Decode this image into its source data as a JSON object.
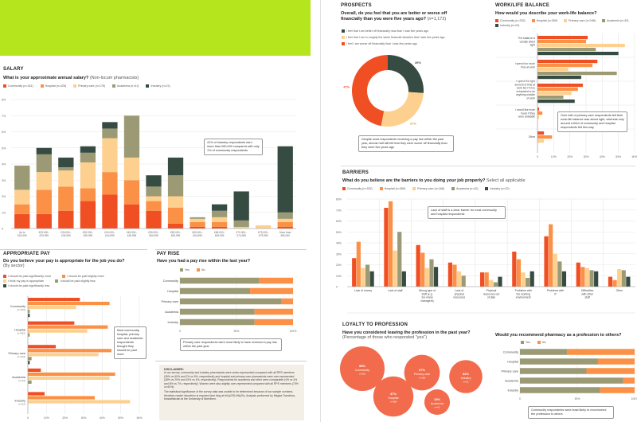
{
  "colors": {
    "banner": "#b5e61d",
    "community": "#f04e23",
    "hospital": "#fb9147",
    "primary_care": "#fdd08f",
    "academia": "#9b9a75",
    "industry": "#364c42",
    "bubble": "#f26b4c",
    "yes": "#9b9a75",
    "no": "#fb9147"
  },
  "salary": {
    "section": "SALARY",
    "question": "What is your approximate annual salary?",
    "question_sub": "(Non-locum pharmacists)",
    "legend": [
      "Community (n=341)",
      "Hospital (n=426)",
      "Primary care (n=176)",
      "Academia (n=41)",
      "Industry (n=21)"
    ],
    "note": "41% of industry respondents earn more than £80,000 compared with only 1% of community respondents"
  },
  "appropriate_pay": {
    "section": "APPROPRIATE PAY",
    "question": "Do you believe your pay is appropriate for the job you do?",
    "question_sub": "(By sector)",
    "legend": [
      "I should be paid significantly more",
      "I should be paid slightly more",
      "I think my pay is appropriate",
      "I should be paid slightly less",
      "I should be paid significantly less"
    ],
    "note": "Most community, hospital, primary care and academia respondents thought they should be paid more"
  },
  "pay_rise": {
    "section": "PAY RISE",
    "question": "Have you had a pay rise within the last year?",
    "legend": [
      "Yes",
      "No"
    ],
    "note": "Primary care respondents were most likely to have received a pay rise within the past year"
  },
  "disclaimer": {
    "title": "DISCLAIMER:",
    "p1": "In our survey, community and industry pharmacists were under-represented compared with all RPS members (39% vs 60% and 2% vs 5%, respectively) and hospital and primary care pharmacists were over-represented (38% vs 20% and 15% vs 4%, respectively). Respondents for academia and other were comparable (4% vs 4% and 8% vs 7%, respectively). Women were also slightly over-represented compared with all RPS members (70% vs 60%).",
    "p2": "The statistical significance of the survey data was unable to be determined because of low sample numbers, therefore reader discretion is required (see blog at bit.ly/2SLhWyTo). Analysis performed by Magda Tranchina, biostatistician at the University of Aberdeen."
  },
  "prospects": {
    "section": "PROSPECTS",
    "question": "Overall, do you feel that you are better or worse off financially than you were five years ago?",
    "question_sub": "(n=1,172)",
    "legend": [
      "I feel that I am better off financially now than I was five years ago",
      "I feel that I am in roughly the same financial situation that I was five years ago",
      "I feel I am worse off financially than I was five years ago"
    ],
    "note": "Despite most respondents receiving a pay rise within the past year, almost half still felt that they were worse off financially than they were five years ago"
  },
  "work_life": {
    "section": "WORK/LIFE BALANCE",
    "question": "How would you describe your work-life balance?",
    "legend": [
      "Community (n=332)",
      "Hospital (n=369)",
      "Primary care (n=166)",
      "Academia (n=42)",
      "Industry (n=22)"
    ],
    "note": "Over half of primary care respondents felt their work-life balance was about right, whereas only around a third of community and hospital respondents felt this way"
  },
  "barriers": {
    "section": "BARRIERS",
    "question": "What do you believe are the barriers to you doing your job properly?",
    "question_sub": "Select all applicable",
    "legend": [
      "Community (n=332)",
      "Hospital (n=369)",
      "Primary care (n=166)",
      "Academia (n=42)",
      "Industry (n=22)"
    ],
    "note": "Lack of staff is a clear barrier for most community and hospital respondents"
  },
  "loyalty": {
    "section": "LOYALTY TO PROFESSION",
    "question": "Have you considered leaving the profession in the past year?",
    "question_sub": "(Percentage of those who responded \"yes\")"
  },
  "recommend": {
    "question": "Would you recommend pharmacy as a profession to others?",
    "legend": [
      "Yes",
      "No"
    ],
    "note": "Community respondents were least likely to recommend the profession to others"
  },
  "chart_data": [
    {
      "id": "salary",
      "type": "bar",
      "stacked": true,
      "title": "What is your approximate annual salary?",
      "categories": [
        "Up to £24,999",
        "£25,000–£29,999",
        "£30,000–£34,999",
        "£35,000–£39,999",
        "£40,000–£44,999",
        "£45,000–£49,999",
        "£50,000–£54,999",
        "£55,000–£59,999",
        "£60,000–£64,999",
        "£65,000–£69,999",
        "£70,000–£74,999",
        "£75,000–£79,999",
        "More than £80,000"
      ],
      "yticks": [
        "0",
        "1%",
        "2%",
        "3%",
        "4%",
        "5%",
        "6%",
        "7%",
        "8%"
      ],
      "ylim": [
        0,
        8
      ],
      "series": [
        {
          "name": "Community",
          "values": [
            0.9,
            0.9,
            1.1,
            1.7,
            2.1,
            1.5,
            1.1,
            0.3,
            0.1,
            0.1,
            0.0,
            0.0,
            0.1
          ]
        },
        {
          "name": "Hospital",
          "values": [
            0.6,
            1.5,
            1.5,
            0.8,
            1.4,
            1.5,
            0.6,
            1.0,
            0.3,
            0.3,
            0.0,
            0.0,
            0.3
          ]
        },
        {
          "name": "Primary care",
          "values": [
            0.9,
            1.1,
            1.0,
            1.6,
            2.1,
            1.4,
            0.3,
            0.7,
            0.2,
            0.3,
            0.1,
            0.2,
            0.2
          ]
        },
        {
          "name": "Academia",
          "values": [
            1.5,
            1.1,
            0.2,
            0.6,
            0.6,
            2.6,
            0.6,
            1.3,
            0.1,
            0.4,
            0.4,
            0.0,
            0.4
          ]
        },
        {
          "name": "Industry",
          "values": [
            0.0,
            0.4,
            0.6,
            0.4,
            0.4,
            0.0,
            0.7,
            1.1,
            0.0,
            0.4,
            1.8,
            0.0,
            4.1
          ]
        }
      ]
    },
    {
      "id": "appropriate_pay",
      "type": "bar",
      "orientation": "horizontal",
      "categories": [
        "Community (n=339)",
        "Hospital (n=362)",
        "Primary care (n=166)",
        "Academia (n=42)",
        "Industry (n=22)"
      ],
      "xticks": [
        "0",
        "10%",
        "20%",
        "30%",
        "40%",
        "50%",
        "60%"
      ],
      "xlim": [
        0,
        60
      ],
      "series": [
        {
          "name": "I should be paid significantly more",
          "values": [
            28,
            25,
            15,
            7,
            9
          ]
        },
        {
          "name": "I should be paid slightly more",
          "values": [
            44,
            43,
            45,
            47,
            36
          ]
        },
        {
          "name": "I think my pay is appropriate",
          "values": [
            26,
            32,
            38,
            44,
            55
          ]
        },
        {
          "name": "I should be paid slightly less",
          "values": [
            1,
            1,
            2,
            2,
            0
          ]
        },
        {
          "name": "I should be paid significantly less",
          "values": [
            1,
            0,
            1,
            0,
            0
          ]
        }
      ]
    },
    {
      "id": "pay_rise",
      "type": "bar",
      "orientation": "horizontal",
      "stacked": true,
      "categories": [
        "Community",
        "Hospital",
        "Primary care",
        "Academia",
        "Industry"
      ],
      "xticks": [
        "0",
        "50%",
        "100%"
      ],
      "xlim": [
        0,
        100
      ],
      "series": [
        {
          "name": "Yes",
          "values": [
            70,
            62,
            90,
            66,
            66
          ]
        },
        {
          "name": "No",
          "values": [
            30,
            38,
            10,
            34,
            34
          ]
        }
      ]
    },
    {
      "id": "prospects",
      "type": "pie",
      "donut": true,
      "categories": [
        "Better off",
        "Roughly the same",
        "Worse off"
      ],
      "values": [
        26,
        27,
        47
      ],
      "labels": [
        "26%",
        "27%",
        "47%"
      ]
    },
    {
      "id": "work_life",
      "type": "bar",
      "orientation": "horizontal",
      "categories": [
        "The balance is usually about right",
        "I spend too much time at work",
        "I spend the right amount of time at work but I'm too exhausted to do anything outside of work",
        "I would like more hours if they were available",
        "Other"
      ],
      "xticks": [
        "0",
        "10%",
        "20%",
        "30%",
        "40%",
        "50%",
        "60%"
      ],
      "xlim": [
        0,
        60
      ],
      "series": [
        {
          "name": "Community",
          "values": [
            31,
            37,
            28,
            1,
            4
          ]
        },
        {
          "name": "Hospital",
          "values": [
            30,
            34,
            25,
            3,
            9
          ]
        },
        {
          "name": "Primary care",
          "values": [
            54,
            19,
            21,
            1,
            4
          ]
        },
        {
          "name": "Academia",
          "values": [
            36,
            49,
            16,
            0,
            0
          ]
        },
        {
          "name": "Industry",
          "values": [
            50,
            27,
            23,
            0,
            0
          ]
        }
      ]
    },
    {
      "id": "barriers",
      "type": "bar",
      "categories": [
        "Lack of money",
        "Lack of staff",
        "Wrong type of staff (e.g. too many managers)",
        "Lack of physical resources",
        "Physical resources out of date",
        "Problems with the working environment",
        "Problems with IT",
        "Difficulties with other staff",
        "Other"
      ],
      "yticks": [
        "0",
        "10%",
        "20%",
        "30%",
        "40%",
        "50%",
        "60%",
        "70%",
        "80%"
      ],
      "ylim": [
        0,
        80
      ],
      "series": [
        {
          "name": "Community",
          "values": [
            26,
            72,
            38,
            22,
            13,
            32,
            46,
            22,
            9
          ]
        },
        {
          "name": "Hospital",
          "values": [
            41,
            78,
            31,
            20,
            13,
            25,
            57,
            18,
            6
          ]
        },
        {
          "name": "Primary care",
          "values": [
            17,
            33,
            17,
            14,
            6,
            13,
            30,
            17,
            16
          ]
        },
        {
          "name": "Academia",
          "values": [
            20,
            50,
            25,
            10,
            4,
            8,
            23,
            15,
            15
          ]
        },
        {
          "name": "Industry",
          "values": [
            14,
            14,
            18,
            0,
            9,
            14,
            14,
            14,
            9
          ]
        }
      ]
    },
    {
      "id": "loyalty",
      "type": "bubble",
      "categories": [
        "Community",
        "Hospital",
        "Primary care",
        "Academia",
        "Industry"
      ],
      "samples": [
        "n=332",
        "n=369",
        "n=166",
        "n=42",
        "n=22"
      ],
      "values": [
        58,
        47,
        37,
        19,
        32
      ],
      "labels": [
        "58%",
        "47%",
        "37%",
        "19%",
        "32%"
      ]
    },
    {
      "id": "recommend",
      "type": "bar",
      "orientation": "horizontal",
      "stacked": true,
      "categories": [
        "Community",
        "Hospital",
        "Primary care",
        "Academia",
        "Industry"
      ],
      "xticks": [
        "0",
        "50%",
        "100%"
      ],
      "xlim": [
        0,
        100
      ],
      "series": [
        {
          "name": "Yes",
          "values": [
            41,
            68,
            58,
            90,
            70
          ]
        },
        {
          "name": "No",
          "values": [
            59,
            32,
            42,
            10,
            30
          ]
        }
      ]
    }
  ]
}
